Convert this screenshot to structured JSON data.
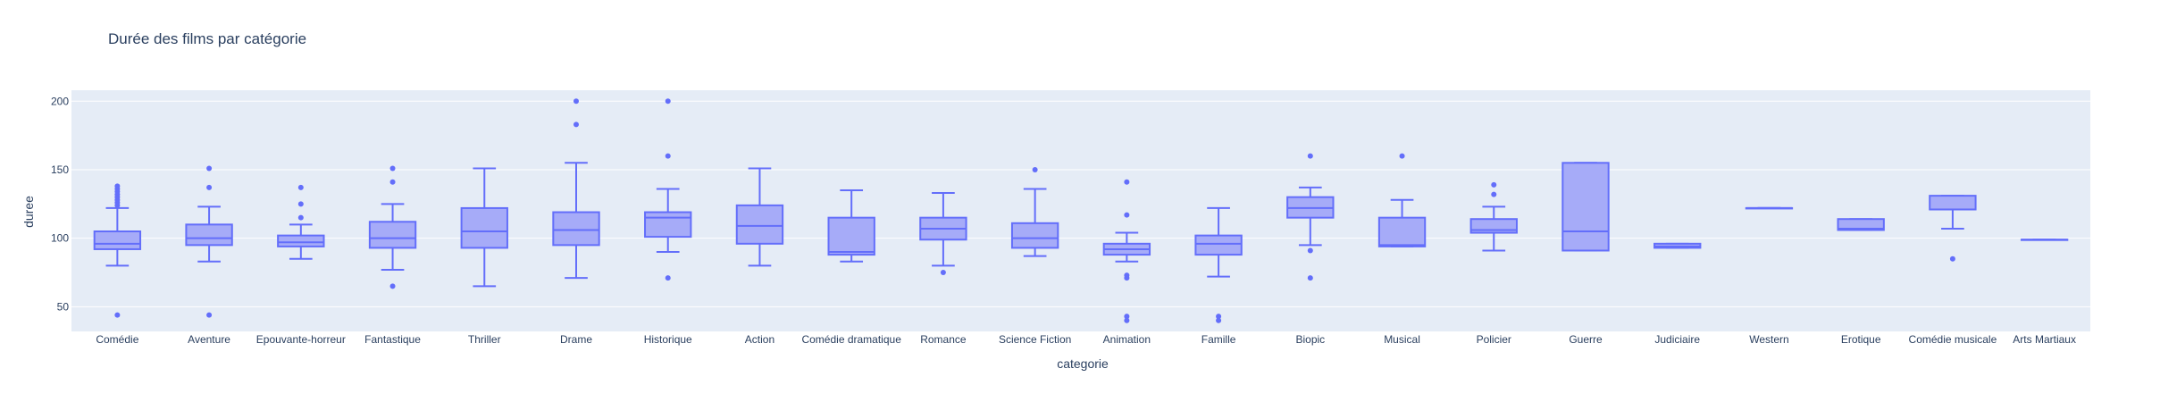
{
  "chart_data": {
    "type": "box",
    "title": "Durée des films par catégorie",
    "xlabel": "categorie",
    "ylabel": "duree",
    "ylim": [
      32,
      208
    ],
    "yticks": [
      50,
      100,
      150,
      200
    ],
    "grid": true,
    "legend": "none",
    "colors": {
      "box_line": "#636efa",
      "box_fill": "#a6abf8",
      "plot_bg": "#e5ecf6",
      "grid": "#ffffff",
      "text": "#2a3f5f"
    },
    "categories": [
      "Comédie",
      "Aventure",
      "Epouvante-horreur",
      "Fantastique",
      "Thriller",
      "Drame",
      "Historique",
      "Action",
      "Comédie dramatique",
      "Romance",
      "Science Fiction",
      "Animation",
      "Famille",
      "Biopic",
      "Musical",
      "Policier",
      "Guerre",
      "Judiciaire",
      "Western",
      "Erotique",
      "Comédie musicale",
      "Arts Martiaux"
    ],
    "boxes": [
      {
        "min": 80,
        "q1": 92,
        "median": 96,
        "q3": 105,
        "max": 122,
        "outliers": [
          44,
          124,
          126,
          128,
          130,
          132,
          134,
          136,
          138
        ]
      },
      {
        "min": 83,
        "q1": 95,
        "median": 100,
        "q3": 110,
        "max": 123,
        "outliers": [
          44,
          137,
          151
        ]
      },
      {
        "min": 85,
        "q1": 94,
        "median": 97,
        "q3": 102,
        "max": 110,
        "outliers": [
          115,
          125,
          137
        ]
      },
      {
        "min": 77,
        "q1": 93,
        "median": 100,
        "q3": 112,
        "max": 125,
        "outliers": [
          65,
          141,
          151
        ]
      },
      {
        "min": 65,
        "q1": 93,
        "median": 105,
        "q3": 122,
        "max": 151,
        "outliers": []
      },
      {
        "min": 71,
        "q1": 95,
        "median": 106,
        "q3": 119,
        "max": 155,
        "outliers": [
          183,
          200
        ]
      },
      {
        "min": 90,
        "q1": 101,
        "median": 115,
        "q3": 119,
        "max": 136,
        "outliers": [
          71,
          160,
          200
        ]
      },
      {
        "min": 80,
        "q1": 96,
        "median": 109,
        "q3": 124,
        "max": 151,
        "outliers": []
      },
      {
        "min": 83,
        "q1": 88,
        "median": 90,
        "q3": 115,
        "max": 135,
        "outliers": []
      },
      {
        "min": 80,
        "q1": 99,
        "median": 107,
        "q3": 115,
        "max": 133,
        "outliers": [
          75
        ]
      },
      {
        "min": 87,
        "q1": 93,
        "median": 100,
        "q3": 111,
        "max": 136,
        "outliers": [
          150
        ]
      },
      {
        "min": 83,
        "q1": 88,
        "median": 92,
        "q3": 96,
        "max": 104,
        "outliers": [
          40,
          43,
          71,
          73,
          117,
          141
        ]
      },
      {
        "min": 72,
        "q1": 88,
        "median": 96,
        "q3": 102,
        "max": 122,
        "outliers": [
          40,
          43
        ]
      },
      {
        "min": 95,
        "q1": 115,
        "median": 122,
        "q3": 130,
        "max": 137,
        "outliers": [
          71,
          91,
          160
        ]
      },
      {
        "min": 94,
        "q1": 94,
        "median": 95,
        "q3": 115,
        "max": 128,
        "outliers": [
          160
        ]
      },
      {
        "min": 91,
        "q1": 104,
        "median": 106,
        "q3": 114,
        "max": 123,
        "outliers": [
          132,
          139
        ]
      },
      {
        "min": 91,
        "q1": 91,
        "median": 105,
        "q3": 155,
        "max": 155,
        "outliers": []
      },
      {
        "min": 93,
        "q1": 93,
        "median": 94,
        "q3": 96,
        "max": 96,
        "outliers": []
      },
      {
        "min": 122,
        "q1": 122,
        "median": 122,
        "q3": 122,
        "max": 122,
        "outliers": []
      },
      {
        "min": 106,
        "q1": 106,
        "median": 107,
        "q3": 114,
        "max": 114,
        "outliers": []
      },
      {
        "min": 107,
        "q1": 121,
        "median": 121,
        "q3": 131,
        "max": 131,
        "outliers": [
          85
        ]
      },
      {
        "min": 99,
        "q1": 99,
        "median": 99,
        "q3": 99,
        "max": 99,
        "outliers": []
      }
    ]
  }
}
